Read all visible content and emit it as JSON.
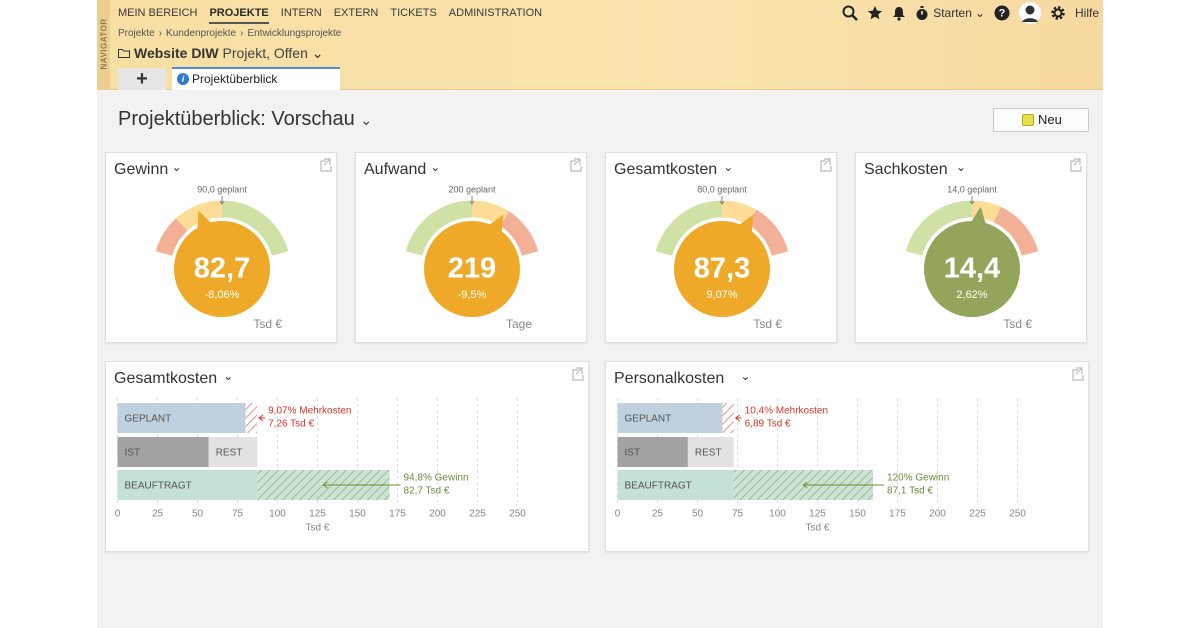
{
  "header": {
    "navigator": "NAVIGATOR",
    "nav": [
      "MEIN BEREICH",
      "PROJEKTE",
      "INTERN",
      "EXTERN",
      "TICKETS",
      "ADMINISTRATION"
    ],
    "breadcrumb": [
      "Projekte",
      "Kundenprojekte",
      "Entwicklungsprojekte"
    ],
    "project_title": "Website DIW",
    "project_status": "Projekt, Offen",
    "tab_add": "+",
    "tab": "Projektüberblick",
    "start": "Starten",
    "help": "Hilfe"
  },
  "page": {
    "title": "Projektüberblick: Vorschau",
    "new_button": "Neu"
  },
  "gauges": [
    {
      "title": "Gewinn",
      "planned": "90,0 geplant",
      "value": "82,7",
      "delta": "-8,06%",
      "unit": "Tsd €",
      "color": "#eea928"
    },
    {
      "title": "Aufwand",
      "planned": "200 geplant",
      "value": "219",
      "delta": "-9,5%",
      "unit": "Tage",
      "color": "#eea928"
    },
    {
      "title": "Gesamtkosten",
      "planned": "80,0 geplant",
      "value": "87,3",
      "delta": "9,07%",
      "unit": "Tsd €",
      "color": "#eea928"
    },
    {
      "title": "Sachkosten",
      "planned": "14,0 geplant",
      "value": "14,4",
      "delta": "2,62%",
      "unit": "Tsd €",
      "color": "#93a55a"
    }
  ],
  "bar_panels": [
    {
      "title": "Gesamtkosten",
      "xlim": [
        0,
        288
      ],
      "xticks": [
        0,
        25,
        50,
        75,
        100,
        125,
        150,
        175,
        200,
        225,
        250
      ],
      "x_label": "Tsd €",
      "rows": [
        {
          "segments": [
            {
              "label": "GEPLANT",
              "value": 80
            },
            {
              "value": 7.26,
              "annotation": [
                "9,07% Mehrkosten",
                "7,26 Tsd €"
              ]
            }
          ]
        },
        {
          "segments": [
            {
              "label": "IST",
              "value": 57
            },
            {
              "label": "REST",
              "value": 30.3
            }
          ]
        },
        {
          "segments": [
            {
              "label": "BEAUFTRAGT",
              "value": 87.3
            },
            {
              "value": 82.7,
              "annotation": [
                "94,8% Gewinn",
                "82,7 Tsd €"
              ]
            }
          ]
        }
      ]
    },
    {
      "title": "Personalkosten",
      "xlim": [
        0,
        288
      ],
      "xticks": [
        0,
        25,
        50,
        75,
        100,
        125,
        150,
        175,
        200,
        225,
        250
      ],
      "x_label": "Tsd €",
      "rows": [
        {
          "segments": [
            {
              "label": "GEPLANT",
              "value": 65.7
            },
            {
              "value": 6.89,
              "annotation": [
                "10,4% Mehrkosten",
                "6,89 Tsd €"
              ]
            }
          ]
        },
        {
          "segments": [
            {
              "label": "IST",
              "value": 44
            },
            {
              "label": "REST",
              "value": 28.6
            }
          ]
        },
        {
          "segments": [
            {
              "label": "BEAUFTRAGT",
              "value": 72.6
            },
            {
              "value": 87.1,
              "annotation": [
                "120% Gewinn",
                "87,1 Tsd €"
              ]
            }
          ]
        }
      ]
    }
  ]
}
